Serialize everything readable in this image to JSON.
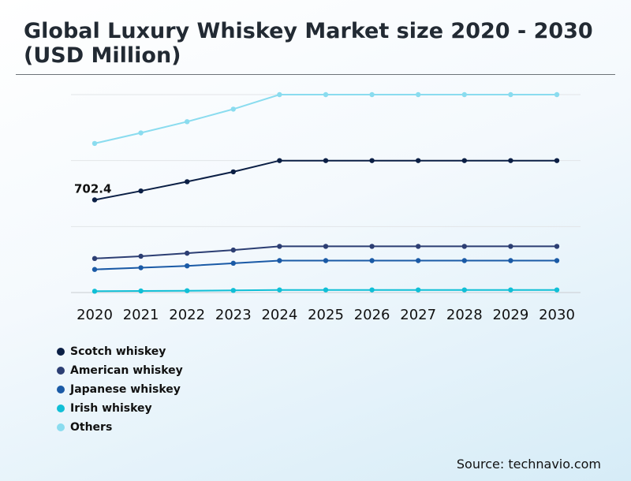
{
  "chart_data": {
    "type": "line",
    "title": "Global Luxury Whiskey Market size 2020 - 2030 (USD Million)",
    "xlabel": "",
    "ylabel": "",
    "categories": [
      "2020",
      "2021",
      "2022",
      "2023",
      "2024",
      "2025",
      "2026",
      "2027",
      "2028",
      "2029",
      "2030"
    ],
    "ylim": [
      0,
      1500
    ],
    "grid": true,
    "legend_position": "bottom-left",
    "annotations": [
      {
        "series": "Scotch whiskey",
        "x": "2020",
        "text": "702.4"
      }
    ],
    "series": [
      {
        "name": "Scotch whiskey",
        "color": "#0b1f45",
        "values": [
          702.4,
          770,
          840,
          915,
          1000,
          1000,
          1000,
          1000,
          1000,
          1000,
          1000
        ]
      },
      {
        "name": "American whiskey",
        "color": "#2c3e73",
        "values": [
          258,
          275,
          298,
          322,
          350,
          350,
          350,
          350,
          350,
          350,
          350
        ]
      },
      {
        "name": "Japanese whiskey",
        "color": "#1a5aa6",
        "values": [
          175,
          188,
          202,
          222,
          242,
          242,
          242,
          242,
          242,
          242,
          242
        ]
      },
      {
        "name": "Irish whiskey",
        "color": "#10bfd6",
        "values": [
          10,
          12,
          14,
          16,
          20,
          20,
          20,
          20,
          20,
          20,
          20
        ]
      },
      {
        "name": "Others",
        "color": "#8adcef",
        "values": [
          1130,
          1210,
          1295,
          1390,
          1500,
          1500,
          1500,
          1500,
          1500,
          1500,
          1500
        ]
      }
    ]
  },
  "source": "Source: technavio.com"
}
